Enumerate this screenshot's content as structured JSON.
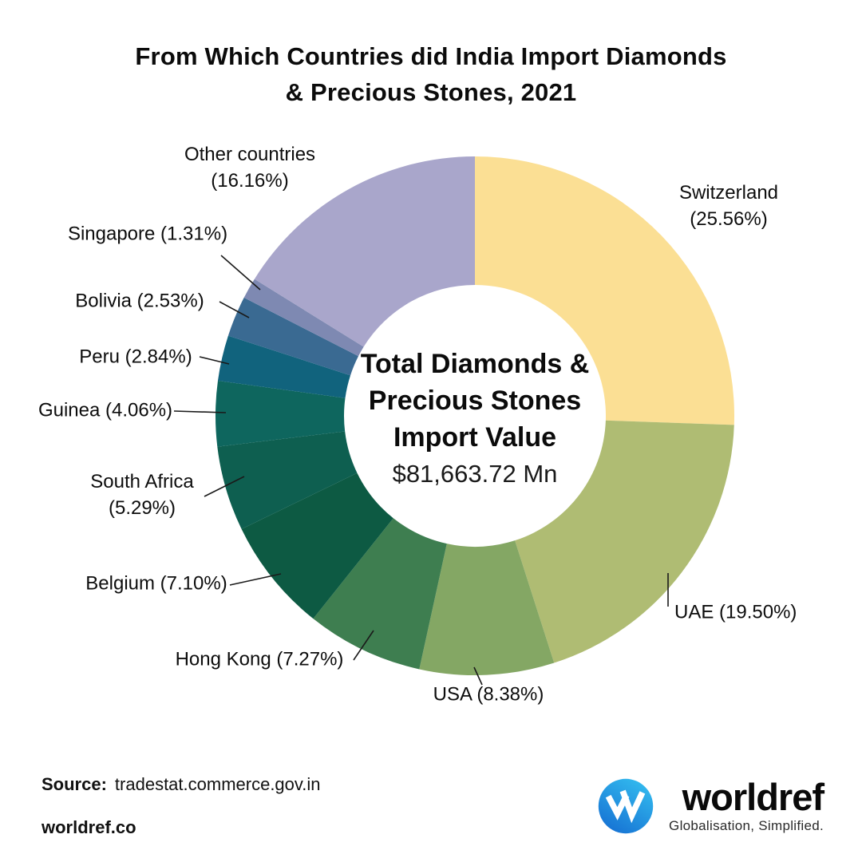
{
  "title": {
    "line1": "From Which Countries did India Import Diamonds",
    "line2": "& Precious Stones, 2021"
  },
  "chart_data": {
    "type": "pie",
    "subtype": "donut",
    "title": "From Which Countries did India Import Diamonds & Precious Stones, 2021",
    "unit": "percent",
    "direction": "clockwise",
    "start_angle_deg": 0,
    "center_label": "Total Diamonds &\nPrecious Stones\nImport Value",
    "center_value": "$81,663.72 Mn",
    "segments": [
      {
        "name": "Switzerland",
        "value": 25.56,
        "label": "Switzerland\n(25.56%)",
        "color": "#FBDF94"
      },
      {
        "name": "UAE",
        "value": 19.5,
        "label": "UAE (19.50%)",
        "color": "#AFBC73"
      },
      {
        "name": "USA",
        "value": 8.38,
        "label": "USA (8.38%)",
        "color": "#84A764"
      },
      {
        "name": "Hong Kong",
        "value": 7.27,
        "label": "Hong Kong (7.27%)",
        "color": "#3E7E50"
      },
      {
        "name": "Belgium",
        "value": 7.1,
        "label": "Belgium (7.10%)",
        "color": "#0D5A43"
      },
      {
        "name": "South Africa",
        "value": 5.29,
        "label": "South Africa\n(5.29%)",
        "color": "#0E5F50"
      },
      {
        "name": "Guinea",
        "value": 4.06,
        "label": "Guinea (4.06%)",
        "color": "#0E665E"
      },
      {
        "name": "Peru",
        "value": 2.84,
        "label": "Peru (2.84%)",
        "color": "#11637D"
      },
      {
        "name": "Bolivia",
        "value": 2.53,
        "label": "Bolivia (2.53%)",
        "color": "#3A6A92"
      },
      {
        "name": "Singapore",
        "value": 1.31,
        "label": "Singapore (1.31%)",
        "color": "#7E89B2"
      },
      {
        "name": "Other countries",
        "value": 16.16,
        "label": "Other countries\n(16.16%)",
        "color": "#A9A6CB"
      }
    ]
  },
  "footer": {
    "source_label": "Source:",
    "source_value": "tradestat.commerce.gov.in",
    "website": "worldref.co",
    "brand": {
      "name": "worldref",
      "tagline": "Globalisation, Simplified.",
      "logo_color_light": "#33BCEF",
      "logo_color_dark": "#1671D3"
    }
  }
}
